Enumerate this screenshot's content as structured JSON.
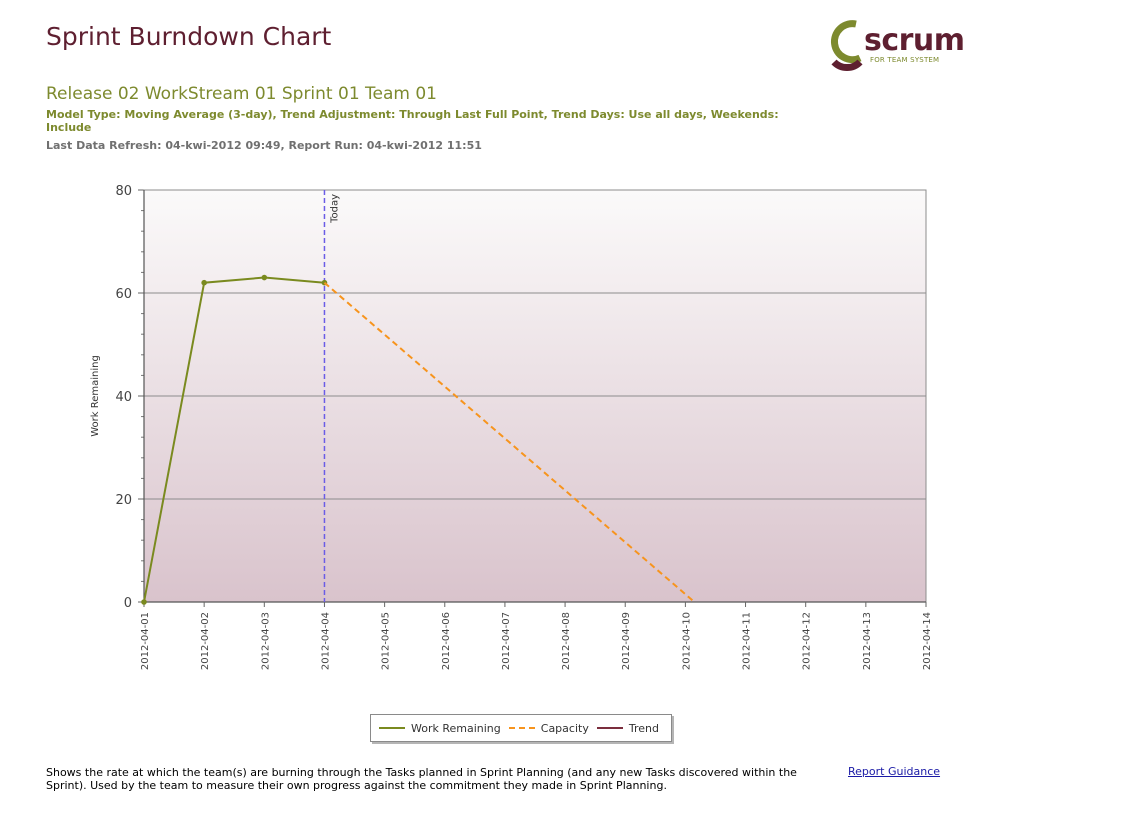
{
  "header": {
    "title": "Sprint Burndown Chart",
    "subtitle": "Release 02 WorkStream 01 Sprint 01 Team 01",
    "model_info": "Model Type: Moving Average (3-day), Trend Adjustment: Through Last Full Point, Trend Days: Use all days, Weekends: Include",
    "refresh_info": "Last Data Refresh: 04-kwi-2012 09:49, Report Run: 04-kwi-2012 11:51"
  },
  "logo": {
    "word": "scrum",
    "tagline": "FOR TEAM SYSTEM"
  },
  "chart_data": {
    "type": "line",
    "title": "",
    "xlabel": "",
    "ylabel": "Work Remaining",
    "ylim": [
      0,
      80
    ],
    "yticks": [
      0,
      20,
      40,
      60,
      80
    ],
    "categories": [
      "2012-04-01",
      "2012-04-02",
      "2012-04-03",
      "2012-04-04",
      "2012-04-05",
      "2012-04-06",
      "2012-04-07",
      "2012-04-08",
      "2012-04-09",
      "2012-04-10",
      "2012-04-11",
      "2012-04-12",
      "2012-04-13",
      "2012-04-14"
    ],
    "grid": true,
    "today_marker": {
      "index": 3,
      "label": "Today"
    },
    "series": [
      {
        "name": "Work Remaining",
        "style": "solid",
        "color": "#7a8a1f",
        "markers": true,
        "points": [
          [
            0,
            0
          ],
          [
            1,
            62
          ],
          [
            2,
            63
          ],
          [
            3,
            62
          ]
        ]
      },
      {
        "name": "Capacity",
        "style": "dashed",
        "color": "#f7941d",
        "markers": false,
        "points": [
          [
            3,
            62
          ],
          [
            9.15,
            0
          ]
        ]
      },
      {
        "name": "Trend",
        "style": "solid",
        "color": "#7b2e3e",
        "markers": false,
        "points": []
      }
    ]
  },
  "footer": {
    "description": "Shows the rate at which the team(s) are burning through the Tasks planned in Sprint Planning (and any new Tasks discovered within the Sprint).  Used by the team to measure their own progress against the commitment they made in Sprint Planning.",
    "guidance_link": "Report Guidance"
  }
}
